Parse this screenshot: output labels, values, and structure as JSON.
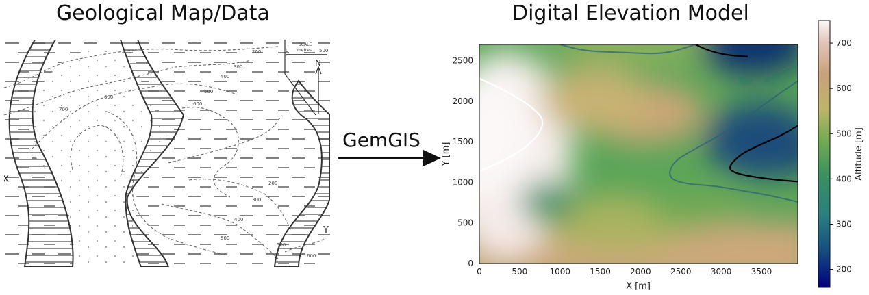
{
  "left_panel": {
    "title": "Geological Map/Data",
    "scale_label": "SCALE",
    "scale_units": "metres",
    "scale_start": "0",
    "scale_end": "500",
    "north_label": "N",
    "section_start_label": "X",
    "section_end_label": "Y",
    "contour_labels": [
      "200",
      "300",
      "400",
      "500",
      "600",
      "700",
      "200",
      "300",
      "400",
      "500",
      "600",
      "500",
      "600"
    ]
  },
  "arrow": {
    "label": "GemGIS"
  },
  "right_panel": {
    "title": "Digital Elevation Model",
    "colors": {
      "low": "#00007f",
      "high": "#fcf8f8"
    }
  },
  "chart_data": {
    "type": "heatmap",
    "title": "Digital Elevation Model",
    "xlabel": "X [m]",
    "ylabel": "Y [m]",
    "xlim": [
      0,
      3950
    ],
    "ylim": [
      0,
      2700
    ],
    "xticks": [
      "0",
      "500",
      "1000",
      "1500",
      "2000",
      "2500",
      "3000",
      "3500"
    ],
    "yticks": [
      "0",
      "500",
      "1000",
      "1500",
      "2000",
      "2500"
    ],
    "colorbar": {
      "label": "Altitude [m]",
      "range": [
        160,
        750
      ],
      "ticks": [
        "200",
        "300",
        "400",
        "500",
        "600",
        "700"
      ],
      "colormap": "gist_earth"
    },
    "contours": [
      {
        "level": 700,
        "color": "#ffffff",
        "points": [
          [
            0,
            2280
          ],
          [
            200,
            2190
          ],
          [
            450,
            2060
          ],
          [
            650,
            1930
          ],
          [
            800,
            1780
          ],
          [
            760,
            1620
          ],
          [
            600,
            1450
          ],
          [
            400,
            1320
          ],
          [
            150,
            1200
          ],
          [
            0,
            1140
          ]
        ]
      },
      {
        "level": 200,
        "color": "#000000",
        "points": [
          [
            2680,
            2700
          ],
          [
            2830,
            2630
          ],
          [
            3050,
            2570
          ],
          [
            3330,
            2550
          ]
        ]
      },
      {
        "level": 200,
        "color": "#000000",
        "points": [
          [
            3950,
            1700
          ],
          [
            3750,
            1580
          ],
          [
            3450,
            1450
          ],
          [
            3230,
            1340
          ],
          [
            3080,
            1180
          ],
          [
            3180,
            1110
          ],
          [
            3450,
            1060
          ],
          [
            3700,
            1030
          ],
          [
            3950,
            1010
          ]
        ]
      },
      {
        "level": 300,
        "color": "#2a5f78",
        "points": [
          [
            1000,
            2700
          ],
          [
            1300,
            2620
          ],
          [
            1800,
            2600
          ],
          [
            2300,
            2580
          ],
          [
            2680,
            2700
          ]
        ]
      },
      {
        "level": 300,
        "color": "#2a5f78",
        "points": [
          [
            3950,
            2250
          ],
          [
            3700,
            2080
          ],
          [
            3450,
            1900
          ],
          [
            3250,
            1760
          ],
          [
            2950,
            1560
          ],
          [
            2650,
            1400
          ],
          [
            2400,
            1250
          ],
          [
            2340,
            1060
          ],
          [
            2550,
            980
          ],
          [
            2900,
            960
          ],
          [
            3250,
            900
          ],
          [
            3600,
            840
          ],
          [
            3950,
            760
          ]
        ]
      }
    ]
  }
}
